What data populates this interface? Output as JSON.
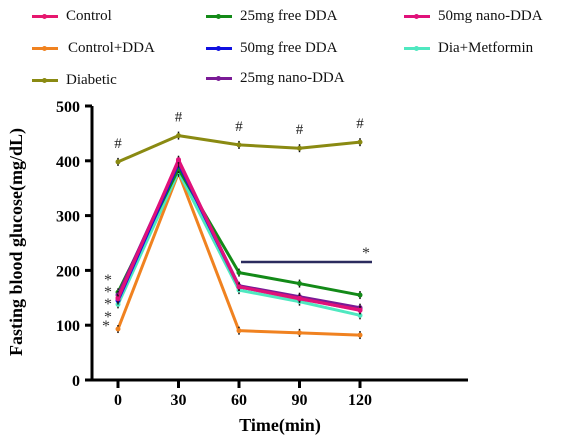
{
  "chart_data": {
    "type": "line",
    "xlabel": "Time(min)",
    "ylabel": "Fasting blood glucose(mg/dL)",
    "x": [
      0,
      30,
      60,
      90,
      120
    ],
    "xticks": [
      "0",
      "30",
      "60",
      "90",
      "120"
    ],
    "yticks": [
      "0",
      "100",
      "200",
      "300",
      "400",
      "500"
    ],
    "ylim": [
      0,
      500
    ],
    "grid": false,
    "legend_position": "top",
    "series": [
      {
        "name": "Control",
        "color": "#e6176e",
        "values": [
          150,
          400,
          170,
          148,
          128
        ]
      },
      {
        "name": "Control+DDA",
        "color": "#f08220",
        "values": [
          93,
          378,
          90,
          86,
          82
        ]
      },
      {
        "name": "Diabetic",
        "color": "#8a8a12",
        "values": [
          398,
          446,
          429,
          423,
          434
        ]
      },
      {
        "name": "25mg free DDA",
        "color": "#138a18",
        "values": [
          160,
          385,
          196,
          176,
          155
        ]
      },
      {
        "name": "50mg free DDA",
        "color": "#1010e0",
        "values": [
          145,
          395,
          170,
          150,
          130
        ]
      },
      {
        "name": "25mg nano-DDA",
        "color": "#7a1a96",
        "values": [
          155,
          398,
          172,
          152,
          132
        ]
      },
      {
        "name": "50mg nano-DDA",
        "color": "#e0117a",
        "values": [
          148,
          402,
          170,
          149,
          127
        ]
      },
      {
        "name": "Dia+Metformin",
        "color": "#4fe8c0",
        "values": [
          138,
          380,
          164,
          143,
          118
        ]
      }
    ],
    "annotations": {
      "hash_symbol": "#",
      "hash_points": [
        0,
        30,
        60,
        90,
        120
      ],
      "star_symbol": "*",
      "star_column": [
        "*",
        "*",
        "*",
        "*",
        "*"
      ],
      "star_bar_label": "*"
    }
  }
}
